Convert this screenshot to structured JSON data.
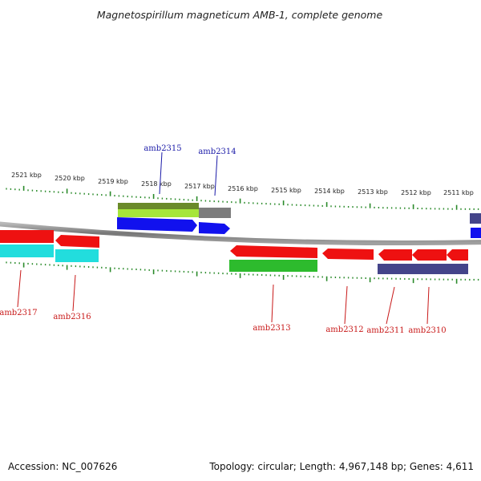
{
  "title": "Magnetospirillum magneticum AMB-1, complete genome",
  "footer": {
    "accession": "Accession: NC_007626",
    "topology": "Topology: circular; Length: 4,967,148 bp; Genes: 4,611"
  },
  "colors": {
    "backbone": "#8c8c8c",
    "tick": "#2a8a2a",
    "forward_label": "#1a1aa8",
    "reverse_label": "#c81818",
    "red": "#ee1111",
    "blue": "#1111ee",
    "green": "#2dbb2d",
    "olive": "#6a8a2a",
    "lime": "#a6e63a",
    "grey": "#7c7c7c",
    "cyan": "#22dddd",
    "slate": "#44448a"
  },
  "kbp_labels": [
    "2521 kbp",
    "2520 kbp",
    "2519 kbp",
    "2518 kbp",
    "2517 kbp",
    "2516 kbp",
    "2515 kbp",
    "2514 kbp",
    "2513 kbp",
    "2512 kbp",
    "2511 kbp"
  ],
  "gene_labels": {
    "forward": [
      "amb2315",
      "amb2314"
    ],
    "reverse": [
      "amb2317",
      "amb2316",
      "amb2313",
      "amb2312",
      "amb2311",
      "amb2310"
    ]
  }
}
